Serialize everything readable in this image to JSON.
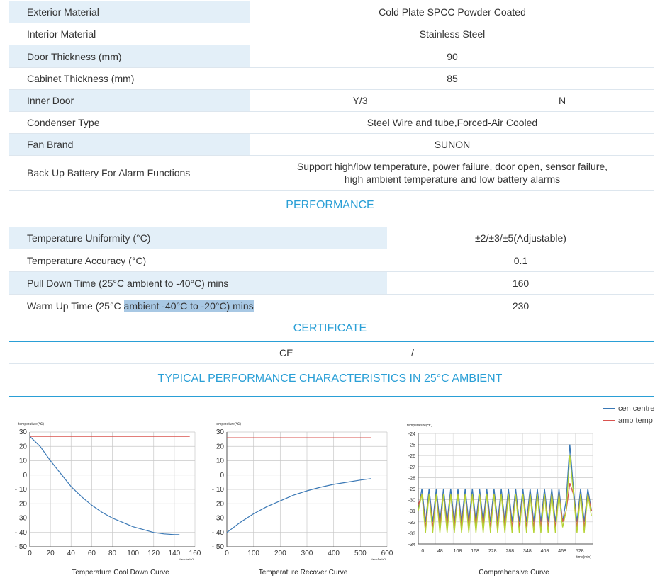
{
  "spec_rows": [
    {
      "label": "Exterior Material",
      "value": "Cold Plate SPCC Powder Coated"
    },
    {
      "label": "Interior Material",
      "value": "Stainless Steel"
    },
    {
      "label": "Door Thickness (mm)",
      "value": "90"
    },
    {
      "label": "Cabinet Thickness (mm)",
      "value": "85"
    },
    {
      "label": "Inner Door",
      "value": "Y/3",
      "value2": "N"
    },
    {
      "label": "Condenser Type",
      "value": "Steel Wire and tube,Forced-Air Cooled"
    },
    {
      "label": "Fan Brand",
      "value": "SUNON"
    },
    {
      "label": "Back Up Battery For Alarm Functions",
      "value_line1": "Support high/low temperature, power failure, door open, sensor failure,",
      "value_line2": "high ambient temperature and low battery alarms"
    }
  ],
  "performance": {
    "title": "PERFORMANCE",
    "rows": [
      {
        "label": "Temperature Uniformity (°C)",
        "value": "±2/±3/±5(Adjustable)"
      },
      {
        "label": "Temperature Accuracy (°C)",
        "value": "0.1"
      },
      {
        "label": "Pull Down Time (25°C ambient to -40°C) mins",
        "value": "160"
      },
      {
        "label_plain": "Warm Up Time (25°C ",
        "label_highlight": "ambient -40°C to -20°C) mins",
        "value": "230"
      }
    ]
  },
  "certificate": {
    "title": "CERTIFICATE",
    "label": "CE",
    "value": "/"
  },
  "typical_title": "TYPICAL PERFORMANCE CHARACTERISTICS IN 25°C AMBIENT",
  "legend": {
    "blue": "cen centre",
    "red": "amb temp"
  },
  "colors": {
    "accent": "#2a9fd6",
    "row_shade": "#e3eff8",
    "highlight": "#a8c8e4",
    "blue_line": "#3a78b5",
    "red_line": "#d9534f",
    "green_line": "#b5d334"
  },
  "chart_data": [
    {
      "type": "line",
      "title": "Temperature Cool Down Curve",
      "ylabel": "temperature(℃)",
      "xlabel": "time(min)",
      "xlim": [
        0,
        160
      ],
      "ylim": [
        -50,
        30
      ],
      "xticks": [
        "0",
        "20",
        "40",
        "60",
        "80",
        "100",
        "120",
        "140",
        "160"
      ],
      "yticks": [
        "30",
        "20",
        "10",
        "0",
        "- 10",
        "- 20",
        "- 30",
        "- 40",
        "- 50"
      ],
      "series": [
        {
          "color": "blue",
          "x": [
            0,
            10,
            20,
            30,
            40,
            50,
            60,
            70,
            80,
            90,
            100,
            110,
            120,
            130,
            140,
            145
          ],
          "y": [
            27,
            20,
            10,
            1,
            -8,
            -15,
            -21,
            -26,
            -30,
            -33,
            -36,
            -38,
            -40,
            -41,
            -41.5,
            -41.5
          ]
        },
        {
          "color": "red",
          "x": [
            0,
            155
          ],
          "y": [
            27,
            27
          ]
        }
      ]
    },
    {
      "type": "line",
      "title": "Temperature Recover Curve",
      "ylabel": "temperature(℃)",
      "xlabel": "time(min)",
      "xlim": [
        0,
        600
      ],
      "ylim": [
        -50,
        30
      ],
      "xticks": [
        "0",
        "100",
        "200",
        "300",
        "400",
        "500",
        "600"
      ],
      "yticks": [
        "30",
        "20",
        "10",
        "0",
        "- 10",
        "- 20",
        "- 30",
        "- 40",
        "- 50"
      ],
      "series": [
        {
          "color": "blue",
          "x": [
            0,
            50,
            100,
            150,
            200,
            250,
            300,
            350,
            400,
            450,
            500,
            540
          ],
          "y": [
            -40,
            -33,
            -27,
            -22,
            -18,
            -14,
            -11,
            -8.5,
            -6.5,
            -5,
            -3.5,
            -2.5
          ]
        },
        {
          "color": "red",
          "x": [
            0,
            540
          ],
          "y": [
            26,
            26
          ]
        }
      ]
    },
    {
      "type": "line",
      "title": "Comprehensive Curve",
      "ylabel": "temperature(℃)",
      "xlabel": "time(min)",
      "xlim": [
        -12,
        568
      ],
      "ylim": [
        -34,
        -24
      ],
      "xticks": [
        "0",
        "48",
        "108",
        "168",
        "228",
        "288",
        "348",
        "408",
        "468",
        "528"
      ],
      "yticks": [
        "-24",
        "-25",
        "-26",
        "-27",
        "-28",
        "-29",
        "-30",
        "-31",
        "-32",
        "-33",
        "-34"
      ],
      "series": [
        {
          "name": "cen centre",
          "color": "blue",
          "x": [
            -12,
            0,
            12,
            24,
            36,
            48,
            60,
            72,
            84,
            96,
            108,
            120,
            132,
            144,
            156,
            168,
            180,
            192,
            204,
            216,
            228,
            240,
            252,
            264,
            276,
            288,
            300,
            312,
            324,
            336,
            348,
            360,
            372,
            384,
            396,
            408,
            420,
            432,
            444,
            456,
            468,
            480,
            492,
            504,
            516,
            528,
            540,
            552,
            564
          ],
          "y": [
            -31,
            -29,
            -32,
            -29,
            -32,
            -29,
            -32,
            -29,
            -32,
            -29,
            -32,
            -29,
            -32,
            -29,
            -32,
            -29,
            -32,
            -29,
            -32,
            -29,
            -32,
            -29,
            -32,
            -29,
            -32,
            -29,
            -32,
            -29,
            -32,
            -29,
            -32,
            -29,
            -32,
            -29,
            -32,
            -29,
            -32,
            -29,
            -32,
            -29,
            -32,
            -30,
            -25,
            -29,
            -32,
            -29,
            -32,
            -29,
            -31
          ]
        },
        {
          "name": "amb temp",
          "color": "red",
          "x": [
            -12,
            0,
            12,
            24,
            36,
            48,
            60,
            72,
            84,
            96,
            108,
            120,
            132,
            144,
            156,
            168,
            180,
            192,
            204,
            216,
            228,
            240,
            252,
            264,
            276,
            288,
            300,
            312,
            324,
            336,
            348,
            360,
            372,
            384,
            396,
            408,
            420,
            432,
            444,
            456,
            468,
            480,
            492,
            504,
            516,
            528,
            540,
            552,
            564
          ],
          "y": [
            -30.5,
            -29.5,
            -32.5,
            -29.5,
            -32.5,
            -29.5,
            -32.5,
            -29.5,
            -32.5,
            -29.5,
            -32.5,
            -29.5,
            -32.5,
            -29.5,
            -32.5,
            -29.5,
            -32.5,
            -29.5,
            -32.5,
            -29.5,
            -32.5,
            -29.5,
            -32.5,
            -29.5,
            -32.5,
            -29.5,
            -32.5,
            -29.5,
            -32.5,
            -29.5,
            -32.5,
            -29.5,
            -32.5,
            -29.5,
            -32.5,
            -29.5,
            -32.5,
            -29.5,
            -32.5,
            -29.5,
            -32,
            -31,
            -28.5,
            -29.5,
            -32.5,
            -29.5,
            -32.5,
            -29.5,
            -31
          ]
        },
        {
          "color": "green",
          "x": [
            -12,
            0,
            12,
            24,
            36,
            48,
            60,
            72,
            84,
            96,
            108,
            120,
            132,
            144,
            156,
            168,
            180,
            192,
            204,
            216,
            228,
            240,
            252,
            264,
            276,
            288,
            300,
            312,
            324,
            336,
            348,
            360,
            372,
            384,
            396,
            408,
            420,
            432,
            444,
            456,
            468,
            480,
            492,
            504,
            516,
            528,
            540,
            552,
            564
          ],
          "y": [
            -31,
            -29.5,
            -33,
            -29.5,
            -33,
            -29.5,
            -33,
            -29.5,
            -33,
            -29.5,
            -33,
            -29.5,
            -33,
            -29.5,
            -33,
            -29.5,
            -33,
            -29.5,
            -33,
            -29.5,
            -33,
            -29.5,
            -33,
            -29.5,
            -33,
            -29.5,
            -33,
            -29.5,
            -33,
            -29.5,
            -33,
            -29.5,
            -33,
            -29.5,
            -33,
            -29.5,
            -33,
            -29.5,
            -33,
            -29.5,
            -32.5,
            -31,
            -26,
            -29.5,
            -33,
            -29.5,
            -33,
            -29.5,
            -31.5
          ]
        }
      ]
    }
  ]
}
